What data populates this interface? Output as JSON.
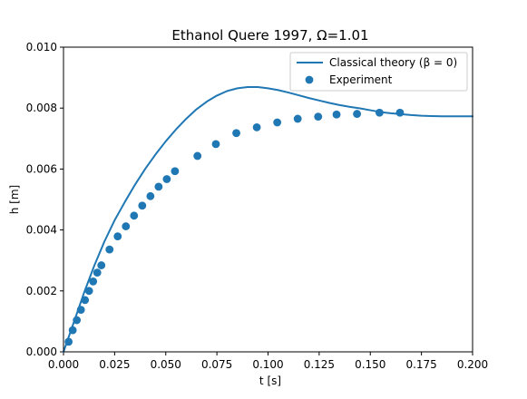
{
  "chart_data": {
    "type": "line",
    "title": "Ethanol Quere 1997, Ω=1.01",
    "xlabel": "t [s]",
    "ylabel": "h [m]",
    "xlim": [
      0,
      0.2
    ],
    "ylim": [
      0,
      0.01
    ],
    "x_ticks": [
      "0.000",
      "0.025",
      "0.050",
      "0.075",
      "0.100",
      "0.125",
      "0.150",
      "0.175",
      "0.200"
    ],
    "y_ticks": [
      "0.000",
      "0.002",
      "0.004",
      "0.006",
      "0.008",
      "0.010"
    ],
    "grid": false,
    "legend_position": "top-right",
    "series": [
      {
        "name": "Classical theory (β = 0)",
        "type": "line",
        "color": "#1f77b4",
        "x": [
          0,
          0.005,
          0.01,
          0.015,
          0.02,
          0.025,
          0.03,
          0.035,
          0.04,
          0.045,
          0.05,
          0.055,
          0.06,
          0.065,
          0.07,
          0.075,
          0.08,
          0.085,
          0.09,
          0.095,
          0.1,
          0.105,
          0.11,
          0.115,
          0.12,
          0.125,
          0.13,
          0.135,
          0.14,
          0.145,
          0.15,
          0.155,
          0.16,
          0.165,
          0.17,
          0.175,
          0.18,
          0.185,
          0.19,
          0.195,
          0.2
        ],
        "y": [
          0.0,
          0.00096,
          0.00193,
          0.00282,
          0.00362,
          0.00432,
          0.00492,
          0.00549,
          0.00601,
          0.00648,
          0.00691,
          0.0073,
          0.00765,
          0.00796,
          0.00821,
          0.00841,
          0.00856,
          0.00865,
          0.00869,
          0.00869,
          0.00865,
          0.00859,
          0.00851,
          0.00842,
          0.00833,
          0.00825,
          0.00817,
          0.0081,
          0.00804,
          0.00799,
          0.00793,
          0.00787,
          0.00783,
          0.0078,
          0.00777,
          0.00775,
          0.00774,
          0.00773,
          0.00773,
          0.00773,
          0.00773
        ]
      },
      {
        "name": "Experiment",
        "type": "scatter",
        "color": "#1f77b4",
        "x": [
          0.0025,
          0.0045,
          0.0065,
          0.0085,
          0.0105,
          0.0125,
          0.0145,
          0.0165,
          0.0185,
          0.0225,
          0.0265,
          0.0305,
          0.0345,
          0.0385,
          0.0425,
          0.0465,
          0.0505,
          0.0545,
          0.0655,
          0.0745,
          0.0845,
          0.0945,
          0.1045,
          0.1145,
          0.1245,
          0.1335,
          0.1435,
          0.1545,
          0.1645
        ],
        "y": [
          0.00033,
          0.00071,
          0.00104,
          0.00138,
          0.0017,
          0.002,
          0.00231,
          0.0026,
          0.00284,
          0.00336,
          0.00379,
          0.00412,
          0.00447,
          0.0048,
          0.00511,
          0.00542,
          0.00567,
          0.00593,
          0.00643,
          0.00682,
          0.00718,
          0.00737,
          0.00753,
          0.00765,
          0.00772,
          0.00779,
          0.00781,
          0.00785,
          0.00785
        ]
      }
    ]
  }
}
